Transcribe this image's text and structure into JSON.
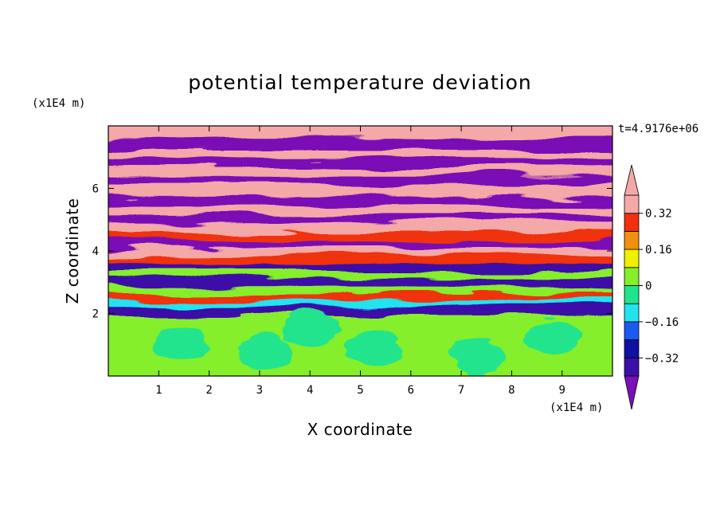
{
  "chart_data": {
    "type": "heatmap",
    "title": "potential temperature deviation",
    "xlabel": "X coordinate",
    "ylabel": "Z coordinate",
    "x_unit": "(x1E4 m)",
    "y_unit": "(x1E4 m)",
    "time_label": "t=4.9176e+06",
    "xlim": [
      0,
      10
    ],
    "ylim": [
      0,
      8
    ],
    "x_ticks": [
      1,
      2,
      3,
      4,
      5,
      6,
      7,
      8,
      9
    ],
    "y_ticks": [
      2,
      4,
      6
    ],
    "x_tick_labels": [
      "1",
      "2",
      "3",
      "4",
      "5",
      "6",
      "7",
      "8",
      "9"
    ],
    "y_tick_labels": [
      "2",
      "4",
      "6"
    ],
    "grid": false,
    "colorbar": {
      "placement": "right",
      "levels": [
        -0.4,
        -0.32,
        -0.24,
        -0.16,
        -0.08,
        0,
        0.08,
        0.16,
        0.24,
        0.32,
        0.4
      ],
      "colors": [
        "#7a10b5",
        "#3c10a8",
        "#1010a0",
        "#1a5cf0",
        "#22e4f0",
        "#22e48c",
        "#84ef2a",
        "#f0f000",
        "#f09010",
        "#f03010",
        "#f4a8a8"
      ],
      "over_color": "#f4a8a8",
      "under_color": "#7a10b5",
      "tick_values": [
        0.32,
        0.16,
        0,
        -0.16,
        -0.32
      ],
      "tick_labels": [
        "0.32",
        "0.16",
        "0",
        "−0.16",
        "−0.32"
      ]
    },
    "bands": [
      {
        "z": 7.75,
        "value": 0.45
      },
      {
        "z": 7.45,
        "value": -0.45
      },
      {
        "z": 7.15,
        "value": 0.45
      },
      {
        "z": 6.85,
        "value": -0.45
      },
      {
        "z": 6.55,
        "value": 0.45
      },
      {
        "z": 6.25,
        "value": -0.45
      },
      {
        "z": 5.95,
        "value": 0.45
      },
      {
        "z": 5.65,
        "value": -0.45
      },
      {
        "z": 5.35,
        "value": 0.45
      },
      {
        "z": 5.05,
        "value": -0.45
      },
      {
        "z": 4.75,
        "value": 0.45
      },
      {
        "z": 4.5,
        "value": 0.3
      },
      {
        "z": 4.25,
        "value": -0.45
      },
      {
        "z": 4.0,
        "value": 0.45
      },
      {
        "z": 3.75,
        "value": 0.25
      },
      {
        "z": 3.5,
        "value": -0.35
      },
      {
        "z": 3.25,
        "value": 0.05
      },
      {
        "z": 3.0,
        "value": -0.4
      },
      {
        "z": 2.75,
        "value": 0.0
      },
      {
        "z": 2.55,
        "value": 0.3
      },
      {
        "z": 2.35,
        "value": -0.1
      },
      {
        "z": 2.15,
        "value": -0.4
      },
      {
        "z": 1.8,
        "value": 0.04
      }
    ],
    "patches": [
      {
        "x": 1.4,
        "z": 1.0,
        "value": -0.04
      },
      {
        "x": 3.1,
        "z": 0.8,
        "value": -0.04
      },
      {
        "x": 5.3,
        "z": 0.9,
        "value": -0.04
      },
      {
        "x": 7.3,
        "z": 0.6,
        "value": -0.04
      },
      {
        "x": 8.8,
        "z": 1.3,
        "value": -0.04
      },
      {
        "x": 4.0,
        "z": 1.5,
        "value": -0.04
      }
    ]
  }
}
